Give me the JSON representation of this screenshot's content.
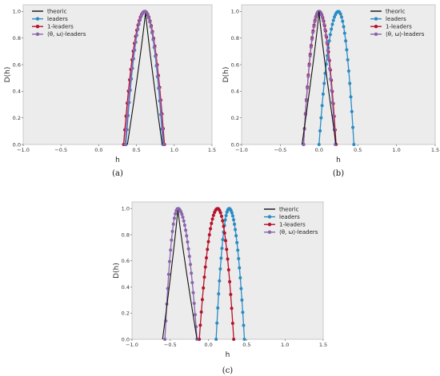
{
  "chart_data": [
    {
      "panel": "(a)",
      "type": "line",
      "xlabel": "h",
      "ylabel": "D(h)",
      "xlim": [
        -1.0,
        1.5
      ],
      "ylim": [
        0.0,
        1.05
      ],
      "xticks": [
        "−1.0",
        "−0.5",
        "0.0",
        "0.5",
        "1.0",
        "1.5"
      ],
      "yticks": [
        "0.0",
        "0.2",
        "0.4",
        "0.6",
        "0.8",
        "1.0"
      ],
      "grid": false,
      "legend_position": "top-left",
      "series": [
        {
          "name": "theoric",
          "color": "#111111",
          "marker": "none",
          "hmin": 0.38,
          "hpeak": 0.62,
          "hmax": 0.84,
          "width": 0.9
        },
        {
          "name": "leaders",
          "color": "#2b8bc4",
          "marker": "circle",
          "hmin": 0.36,
          "hpeak": 0.61,
          "hmax": 0.85,
          "width": 2.0
        },
        {
          "name": "1-leaders",
          "color": "#b5122b",
          "marker": "circle",
          "hmin": 0.33,
          "hpeak": 0.61,
          "hmax": 0.87,
          "width": 2.0
        },
        {
          "name": "⟨θ, ω⟩-leaders",
          "color": "#8a64ad",
          "marker": "circle",
          "hmin": 0.35,
          "hpeak": 0.61,
          "hmax": 0.86,
          "width": 2.0
        }
      ]
    },
    {
      "panel": "(b)",
      "type": "line",
      "xlabel": "h",
      "ylabel": "D(h)",
      "xlim": [
        -1.0,
        1.5
      ],
      "ylim": [
        0.0,
        1.05
      ],
      "xticks": [
        "−1.0",
        "−0.5",
        "0.0",
        "0.5",
        "1.0",
        "1.5"
      ],
      "yticks": [
        "0.0",
        "0.2",
        "0.4",
        "0.6",
        "0.8",
        "1.0"
      ],
      "grid": false,
      "legend_position": "top-right",
      "series": [
        {
          "name": "theoric",
          "color": "#111111",
          "marker": "none",
          "hmin": -0.22,
          "hpeak": 0.0,
          "hmax": 0.22,
          "width": 0.9
        },
        {
          "name": "leaders",
          "color": "#2b8bc4",
          "marker": "circle",
          "hmin": 0.0,
          "hpeak": 0.25,
          "hmax": 0.45,
          "width": 2.0
        },
        {
          "name": "1-leaders",
          "color": "#b5122b",
          "marker": "circle",
          "hmin": -0.2,
          "hpeak": 0.0,
          "hmax": 0.22,
          "width": 2.0
        },
        {
          "name": "⟨θ, ω⟩-leaders",
          "color": "#8a64ad",
          "marker": "circle",
          "hmin": -0.2,
          "hpeak": 0.0,
          "hmax": 0.21,
          "width": 2.0
        }
      ]
    },
    {
      "panel": "(c)",
      "type": "line",
      "xlabel": "h",
      "ylabel": "D(h)",
      "xlim": [
        -1.0,
        1.5
      ],
      "ylim": [
        0.0,
        1.05
      ],
      "xticks": [
        "−1.0",
        "−0.5",
        "0.0",
        "0.5",
        "1.0",
        "1.5"
      ],
      "yticks": [
        "0.0",
        "0.2",
        "0.4",
        "0.6",
        "0.8",
        "1.0"
      ],
      "grid": false,
      "legend_position": "top-right",
      "series": [
        {
          "name": "theoric",
          "color": "#111111",
          "marker": "none",
          "hmin": -0.6,
          "hpeak": -0.4,
          "hmax": -0.15,
          "width": 0.9
        },
        {
          "name": "leaders",
          "color": "#2b8bc4",
          "marker": "circle",
          "hmin": 0.1,
          "hpeak": 0.27,
          "hmax": 0.47,
          "width": 2.0
        },
        {
          "name": "1-leaders",
          "color": "#b5122b",
          "marker": "circle",
          "hmin": -0.12,
          "hpeak": 0.12,
          "hmax": 0.33,
          "width": 2.0
        },
        {
          "name": "⟨θ, ω⟩-leaders",
          "color": "#8a64ad",
          "marker": "circle",
          "hmin": -0.57,
          "hpeak": -0.4,
          "hmax": -0.15,
          "width": 2.0
        }
      ]
    }
  ]
}
